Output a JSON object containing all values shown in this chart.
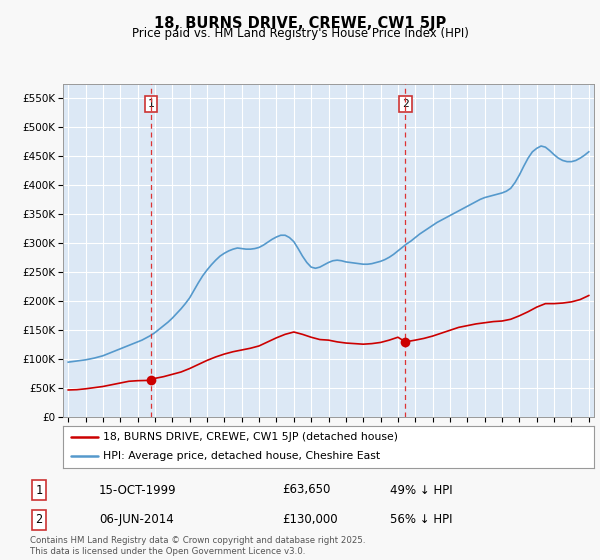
{
  "title": "18, BURNS DRIVE, CREWE, CW1 5JP",
  "subtitle": "Price paid vs. HM Land Registry's House Price Index (HPI)",
  "ylabel_vals": [
    0,
    50000,
    100000,
    150000,
    200000,
    250000,
    300000,
    350000,
    400000,
    450000,
    500000,
    550000
  ],
  "ylim": [
    0,
    575000
  ],
  "xlim_start": 1994.7,
  "xlim_end": 2025.3,
  "legend_entry1": "18, BURNS DRIVE, CREWE, CW1 5JP (detached house)",
  "legend_entry2": "HPI: Average price, detached house, Cheshire East",
  "sale1_date": "15-OCT-1999",
  "sale1_price": "£63,650",
  "sale1_hpi": "49% ↓ HPI",
  "sale1_year": 1999.79,
  "sale1_price_val": 63650,
  "sale2_date": "06-JUN-2014",
  "sale2_price": "£130,000",
  "sale2_hpi": "56% ↓ HPI",
  "sale2_year": 2014.43,
  "sale2_price_val": 130000,
  "footer": "Contains HM Land Registry data © Crown copyright and database right 2025.\nThis data is licensed under the Open Government Licence v3.0.",
  "line_color_red": "#cc0000",
  "line_color_blue": "#5599cc",
  "vline_color": "#dd3333",
  "background_color": "#f8f8f8",
  "plot_bg": "#dce8f5",
  "grid_color": "#ffffff",
  "hpi_years": [
    1995.0,
    1995.25,
    1995.5,
    1995.75,
    1996.0,
    1996.25,
    1996.5,
    1996.75,
    1997.0,
    1997.25,
    1997.5,
    1997.75,
    1998.0,
    1998.25,
    1998.5,
    1998.75,
    1999.0,
    1999.25,
    1999.5,
    1999.75,
    2000.0,
    2000.25,
    2000.5,
    2000.75,
    2001.0,
    2001.25,
    2001.5,
    2001.75,
    2002.0,
    2002.25,
    2002.5,
    2002.75,
    2003.0,
    2003.25,
    2003.5,
    2003.75,
    2004.0,
    2004.25,
    2004.5,
    2004.75,
    2005.0,
    2005.25,
    2005.5,
    2005.75,
    2006.0,
    2006.25,
    2006.5,
    2006.75,
    2007.0,
    2007.25,
    2007.5,
    2007.75,
    2008.0,
    2008.25,
    2008.5,
    2008.75,
    2009.0,
    2009.25,
    2009.5,
    2009.75,
    2010.0,
    2010.25,
    2010.5,
    2010.75,
    2011.0,
    2011.25,
    2011.5,
    2011.75,
    2012.0,
    2012.25,
    2012.5,
    2012.75,
    2013.0,
    2013.25,
    2013.5,
    2013.75,
    2014.0,
    2014.25,
    2014.5,
    2014.75,
    2015.0,
    2015.25,
    2015.5,
    2015.75,
    2016.0,
    2016.25,
    2016.5,
    2016.75,
    2017.0,
    2017.25,
    2017.5,
    2017.75,
    2018.0,
    2018.25,
    2018.5,
    2018.75,
    2019.0,
    2019.25,
    2019.5,
    2019.75,
    2020.0,
    2020.25,
    2020.5,
    2020.75,
    2021.0,
    2021.25,
    2021.5,
    2021.75,
    2022.0,
    2022.25,
    2022.5,
    2022.75,
    2023.0,
    2023.25,
    2023.5,
    2023.75,
    2024.0,
    2024.25,
    2024.5,
    2024.75,
    2025.0
  ],
  "hpi_values": [
    95000,
    96000,
    97000,
    98000,
    99000,
    100500,
    102000,
    104000,
    106000,
    109000,
    112000,
    115000,
    118000,
    121000,
    124000,
    127000,
    130000,
    133000,
    137000,
    141000,
    146000,
    152000,
    158000,
    164000,
    171000,
    179000,
    187000,
    196000,
    206000,
    219000,
    232000,
    244000,
    254000,
    263000,
    271000,
    278000,
    283000,
    287000,
    290000,
    292000,
    291000,
    290000,
    290000,
    291000,
    293000,
    297000,
    302000,
    307000,
    311000,
    314000,
    314000,
    310000,
    303000,
    291000,
    278000,
    267000,
    259000,
    257000,
    259000,
    263000,
    267000,
    270000,
    271000,
    270000,
    268000,
    267000,
    266000,
    265000,
    264000,
    264000,
    265000,
    267000,
    269000,
    272000,
    276000,
    281000,
    287000,
    293000,
    299000,
    304000,
    310000,
    316000,
    321000,
    326000,
    331000,
    336000,
    340000,
    344000,
    348000,
    352000,
    356000,
    360000,
    364000,
    368000,
    372000,
    376000,
    379000,
    381000,
    383000,
    385000,
    387000,
    390000,
    395000,
    405000,
    418000,
    433000,
    447000,
    458000,
    464000,
    468000,
    466000,
    460000,
    453000,
    447000,
    443000,
    441000,
    441000,
    443000,
    447000,
    452000,
    458000
  ],
  "price_years": [
    1995.0,
    1995.5,
    1996.0,
    1996.5,
    1997.0,
    1997.5,
    1998.0,
    1998.5,
    1999.0,
    1999.5,
    1999.79,
    2000.0,
    2000.5,
    2001.0,
    2001.5,
    2002.0,
    2002.5,
    2003.0,
    2003.5,
    2004.0,
    2004.5,
    2005.0,
    2005.5,
    2006.0,
    2006.5,
    2007.0,
    2007.5,
    2008.0,
    2008.5,
    2009.0,
    2009.5,
    2010.0,
    2010.5,
    2011.0,
    2011.5,
    2012.0,
    2012.5,
    2013.0,
    2013.5,
    2014.0,
    2014.43,
    2015.0,
    2015.5,
    2016.0,
    2016.5,
    2017.0,
    2017.5,
    2018.0,
    2018.5,
    2019.0,
    2019.5,
    2020.0,
    2020.5,
    2021.0,
    2021.5,
    2022.0,
    2022.5,
    2023.0,
    2023.5,
    2024.0,
    2024.5,
    2025.0
  ],
  "price_values": [
    47000,
    47500,
    49000,
    51000,
    53000,
    56000,
    59000,
    62000,
    63000,
    63400,
    63650,
    67000,
    70000,
    74000,
    78000,
    84000,
    91000,
    98000,
    104000,
    109000,
    113000,
    116000,
    119000,
    123000,
    130000,
    137000,
    143000,
    147000,
    143000,
    138000,
    134000,
    133000,
    130000,
    128000,
    127000,
    126000,
    127000,
    129000,
    133000,
    138000,
    130000,
    133000,
    136000,
    140000,
    145000,
    150000,
    155000,
    158000,
    161000,
    163000,
    165000,
    166000,
    169000,
    175000,
    182000,
    190000,
    196000,
    196000,
    197000,
    199000,
    203000,
    210000
  ]
}
